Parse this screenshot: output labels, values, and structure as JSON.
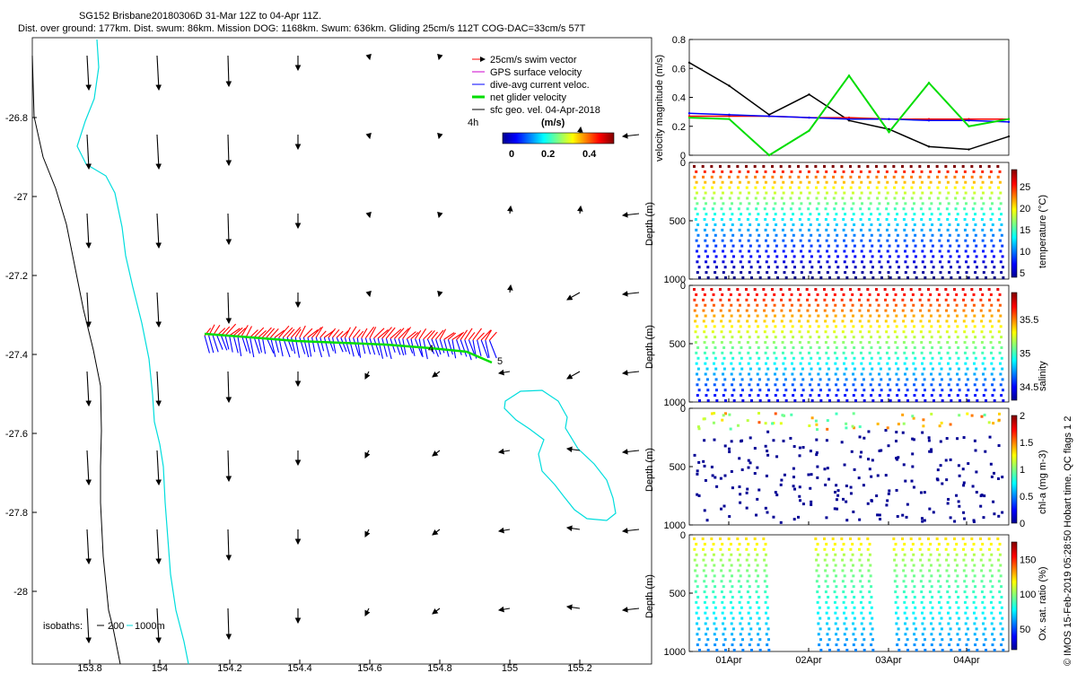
{
  "header": {
    "title_line1": "SG152 Brisbane20180306D 31-Mar 12Z to 04-Apr 11Z.",
    "title_line2": "Dist. over ground: 177km. Dist. swum: 86km. Mission DOG: 1168km. Swum: 636km. Gliding 25cm/s 112T COG-DAC=33cm/s 57T"
  },
  "map": {
    "legend": [
      {
        "label": "25cm/s swim vector",
        "color": "#ff0000"
      },
      {
        "label": "GPS surface velocity",
        "color": "#cc00cc"
      },
      {
        "label": "dive-avg current veloc.",
        "color": "#0000ff"
      },
      {
        "label": "net glider velocity",
        "color": "#00dd00"
      },
      {
        "label": "sfc geo. vel. 04-Apr-2018",
        "color": "#000000"
      }
    ],
    "interval_label": "4h",
    "colorbar_unit": "(m/s)",
    "colorbar_ticks": [
      "0",
      "0.2",
      "0.4"
    ],
    "isobaths_label": "isobaths:",
    "isobath_values": [
      "200",
      "1000m"
    ],
    "point_labels": [
      "4",
      "5"
    ],
    "lon_ticks": [
      "153.8",
      "154",
      "154.2",
      "154.4",
      "154.6",
      "154.8",
      "155",
      "155.2"
    ],
    "lat_ticks": [
      "-26.8",
      "-27",
      "-27.2",
      "-27.4",
      "-27.6",
      "-27.8",
      "-28"
    ]
  },
  "chart_data": [
    {
      "type": "line",
      "title": "velocity magnitude",
      "ylabel": "velocity magnitude (m/s)",
      "ylim": [
        0,
        0.8
      ],
      "y_ticks": [
        "0",
        "0.2",
        "0.4",
        "0.6",
        "0.8"
      ],
      "x": [
        0,
        0.5,
        1,
        1.5,
        2,
        2.5,
        3,
        3.5,
        4
      ],
      "series": [
        {
          "name": "black",
          "color": "#000000",
          "values": [
            0.64,
            0.48,
            0.28,
            0.42,
            0.24,
            0.18,
            0.06,
            0.04,
            0.13
          ]
        },
        {
          "name": "red",
          "color": "#ff0000",
          "values": [
            0.27,
            0.27,
            0.27,
            0.26,
            0.26,
            0.25,
            0.25,
            0.25,
            0.25
          ]
        },
        {
          "name": "blue",
          "color": "#0000ff",
          "values": [
            0.29,
            0.28,
            0.27,
            0.26,
            0.25,
            0.25,
            0.24,
            0.24,
            0.23
          ]
        },
        {
          "name": "green",
          "color": "#00dd00",
          "values": [
            0.26,
            0.25,
            0.0,
            0.17,
            0.55,
            0.16,
            0.5,
            0.2,
            0.25
          ]
        }
      ]
    },
    {
      "type": "scatter",
      "ylabel": "Depth (m)",
      "ylim": [
        1000,
        0
      ],
      "y_ticks": [
        "0",
        "500",
        "1000"
      ],
      "colorbar_label": "temperature (°C)",
      "colorbar_ticks": [
        "5",
        "10",
        "15",
        "20",
        "25"
      ],
      "clim": [
        4,
        29
      ]
    },
    {
      "type": "scatter",
      "ylabel": "Depth (m)",
      "ylim": [
        1000,
        0
      ],
      "y_ticks": [
        "0",
        "500",
        "1000"
      ],
      "colorbar_label": "salinity",
      "colorbar_ticks": [
        "34.5",
        "35",
        "35.5"
      ],
      "clim": [
        34.3,
        35.9
      ]
    },
    {
      "type": "scatter",
      "ylabel": "Depth (m)",
      "ylim": [
        1000,
        0
      ],
      "y_ticks": [
        "0",
        "500",
        "1000"
      ],
      "colorbar_label": "chl-a (mg m-3)",
      "colorbar_ticks": [
        "0",
        "0.5",
        "1",
        "1.5",
        "2"
      ],
      "clim": [
        0,
        2
      ]
    },
    {
      "type": "scatter",
      "ylabel": "Depth (m)",
      "ylim": [
        1000,
        0
      ],
      "y_ticks": [
        "0",
        "500",
        "1000"
      ],
      "colorbar_label": "Ox. sat. ratio (%)",
      "colorbar_ticks": [
        "50",
        "100",
        "150"
      ],
      "clim": [
        20,
        175
      ],
      "x_ticks": [
        "01Apr",
        "02Apr",
        "03Apr",
        "04Apr"
      ]
    }
  ],
  "footer": {
    "credit": "© IMOS 15-Feb-2019 05:28:50 Hobart time. QC flags 1  2"
  }
}
